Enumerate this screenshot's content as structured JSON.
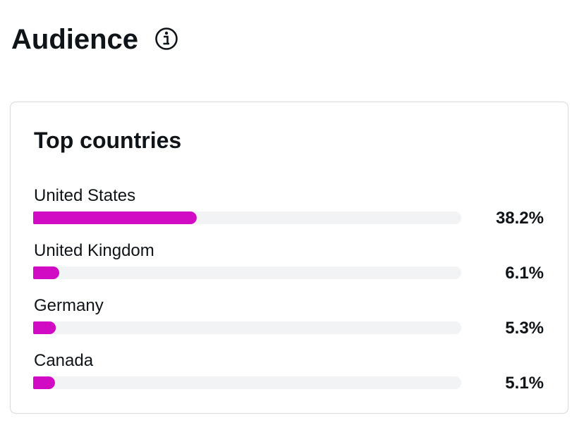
{
  "header": {
    "title": "Audience"
  },
  "chart_data": {
    "type": "bar",
    "orientation": "horizontal",
    "title": "Top countries",
    "categories": [
      "United States",
      "United Kingdom",
      "Germany",
      "Canada"
    ],
    "values": [
      38.2,
      6.1,
      5.3,
      5.1
    ],
    "value_labels": [
      "38.2%",
      "6.1%",
      "5.3%",
      "5.1%"
    ],
    "color": "#d10bc4",
    "xlim": [
      0,
      100
    ]
  }
}
